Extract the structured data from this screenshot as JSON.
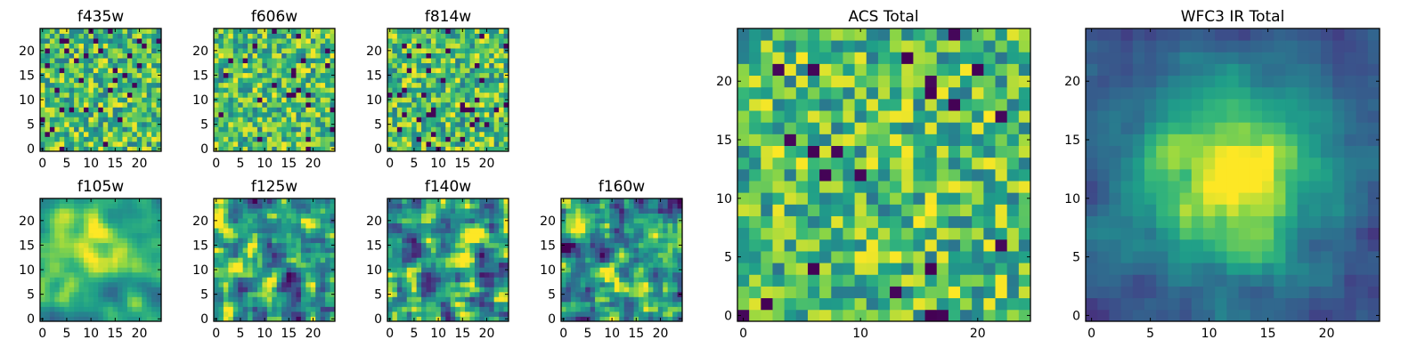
{
  "chart_data": [
    {
      "type": "heatmap",
      "title": "f435w",
      "size": 25,
      "colormap": "viridis",
      "pattern": "noise",
      "xticks": [
        0,
        5,
        10,
        15,
        20
      ],
      "yticks": [
        0,
        5,
        10,
        15,
        20
      ],
      "xlim": [
        0,
        24
      ],
      "ylim": [
        0,
        24
      ]
    },
    {
      "type": "heatmap",
      "title": "f606w",
      "size": 25,
      "colormap": "viridis",
      "pattern": "noise",
      "xticks": [
        0,
        5,
        10,
        15,
        20
      ],
      "yticks": [
        0,
        5,
        10,
        15,
        20
      ],
      "xlim": [
        0,
        24
      ],
      "ylim": [
        0,
        24
      ]
    },
    {
      "type": "heatmap",
      "title": "f814w",
      "size": 25,
      "colormap": "viridis",
      "pattern": "noise",
      "xticks": [
        0,
        5,
        10,
        15,
        20
      ],
      "yticks": [
        0,
        5,
        10,
        15,
        20
      ],
      "xlim": [
        0,
        24
      ],
      "ylim": [
        0,
        24
      ]
    },
    {
      "type": "heatmap",
      "title": "f105w",
      "size": 25,
      "colormap": "viridis",
      "pattern": "smooth-source",
      "xticks": [
        0,
        5,
        10,
        15,
        20
      ],
      "yticks": [
        0,
        5,
        10,
        15,
        20
      ],
      "xlim": [
        0,
        24
      ],
      "ylim": [
        0,
        24
      ]
    },
    {
      "type": "heatmap",
      "title": "f125w",
      "size": 25,
      "colormap": "viridis",
      "pattern": "smooth-noise",
      "xticks": [
        0,
        5,
        10,
        15,
        20
      ],
      "yticks": [
        0,
        5,
        10,
        15,
        20
      ],
      "xlim": [
        0,
        24
      ],
      "ylim": [
        0,
        24
      ]
    },
    {
      "type": "heatmap",
      "title": "f140w",
      "size": 25,
      "colormap": "viridis",
      "pattern": "smooth-noise",
      "xticks": [
        0,
        5,
        10,
        15,
        20
      ],
      "yticks": [
        0,
        5,
        10,
        15,
        20
      ],
      "xlim": [
        0,
        24
      ],
      "ylim": [
        0,
        24
      ]
    },
    {
      "type": "heatmap",
      "title": "f160w",
      "size": 25,
      "colormap": "viridis",
      "pattern": "smooth-noise",
      "xticks": [
        0,
        5,
        10,
        15,
        20
      ],
      "yticks": [
        0,
        5,
        10,
        15,
        20
      ],
      "xlim": [
        0,
        24
      ],
      "ylim": [
        0,
        24
      ]
    },
    {
      "type": "heatmap",
      "title": "ACS Total",
      "size": 25,
      "colormap": "viridis",
      "pattern": "noise",
      "xticks": [
        0,
        10,
        20
      ],
      "yticks": [
        0,
        5,
        10,
        15,
        20
      ],
      "xlim": [
        0,
        24
      ],
      "ylim": [
        0,
        24
      ]
    },
    {
      "type": "heatmap",
      "title": "WFC3 IR Total",
      "size": 25,
      "colormap": "viridis",
      "pattern": "central-source",
      "xticks": [
        0,
        5,
        10,
        15,
        20
      ],
      "yticks": [
        0,
        5,
        10,
        15,
        20
      ],
      "xlim": [
        0,
        24
      ],
      "ylim": [
        0,
        24
      ]
    }
  ]
}
